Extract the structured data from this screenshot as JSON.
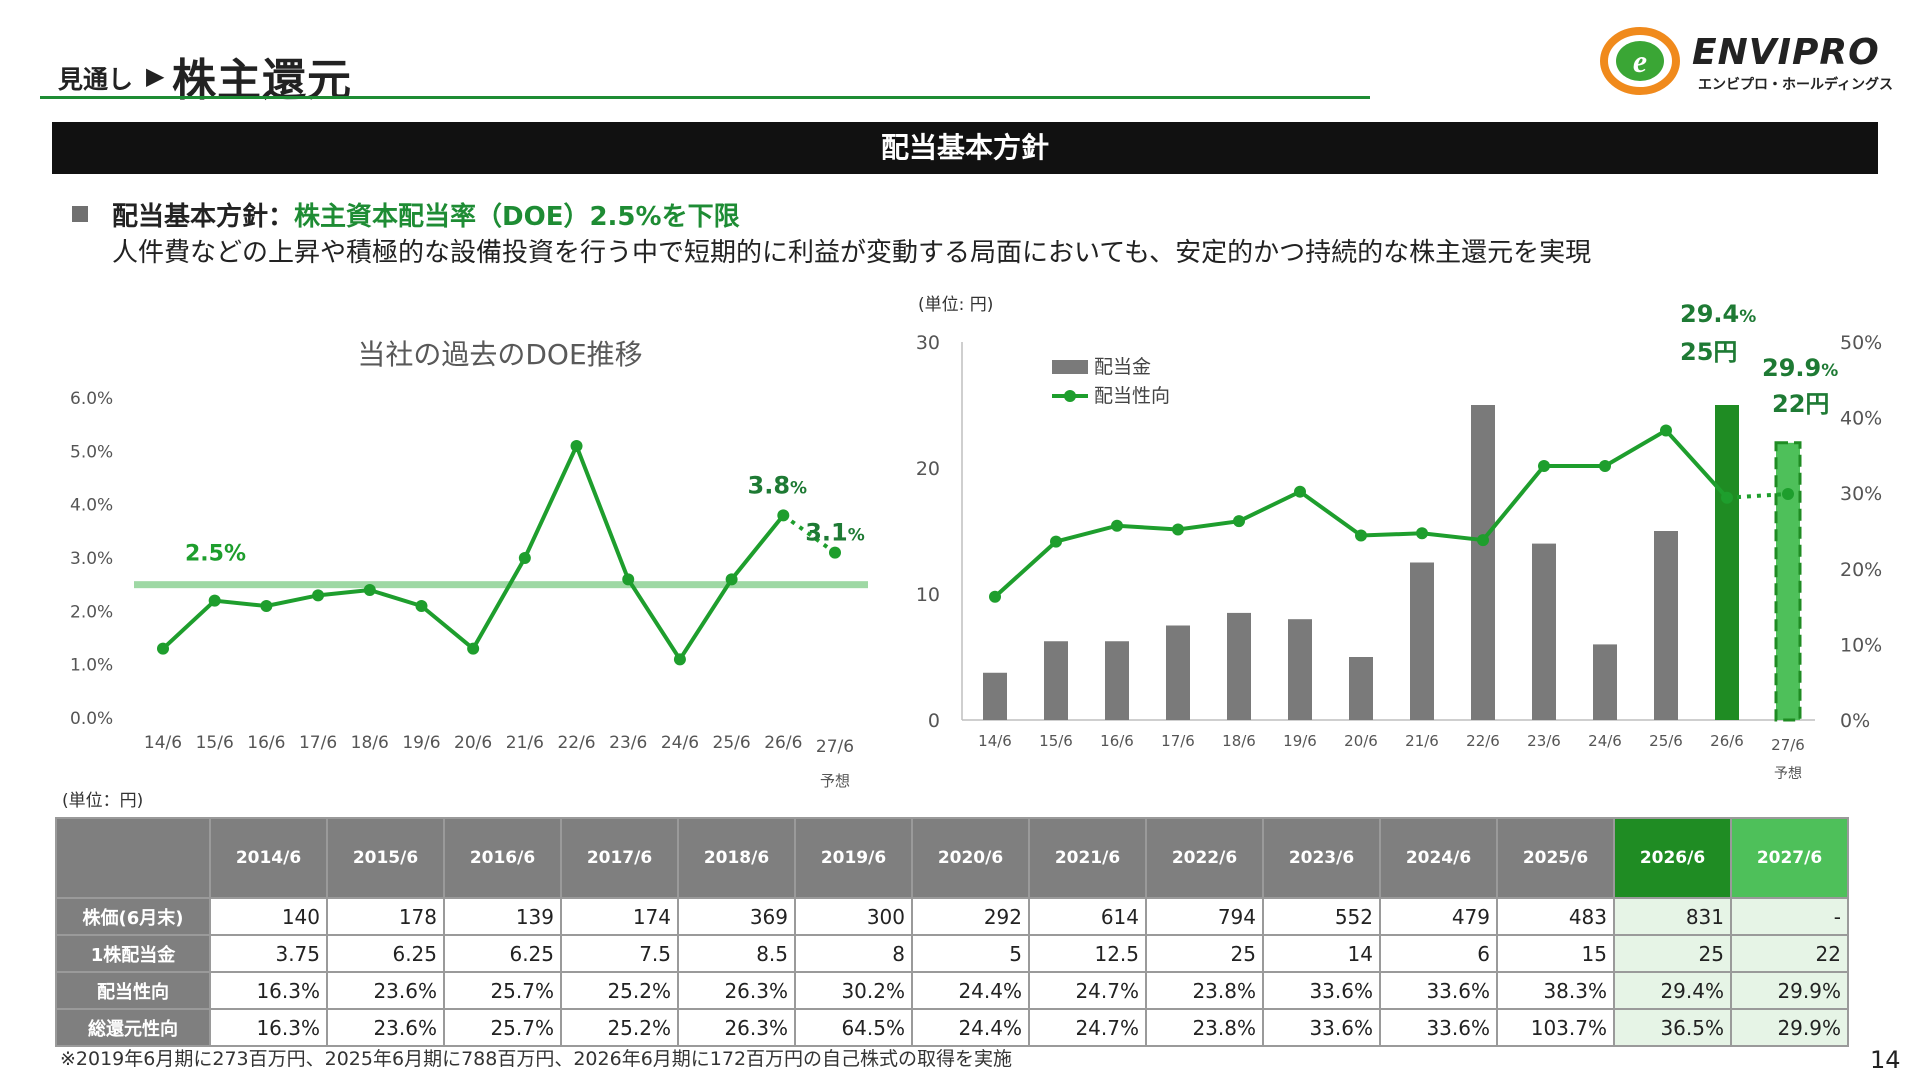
{
  "header": {
    "prefix": "見通し",
    "arrow": "▶",
    "title": "株主還元"
  },
  "logo": {
    "name": "ENVIPRO",
    "sub": "エンビプロ・ホールディングス",
    "colors": {
      "orange": "#f08a1c",
      "green": "#3aa635"
    }
  },
  "banner": {
    "title": "配当基本方針"
  },
  "policy": {
    "label": "配当基本方針：",
    "highlight": "株主資本配当率（DOE）2.5%を下限",
    "description": "人件費などの上昇や積極的な設備投資を行う中で短期的に利益が変動する局面においても、安定的かつ持続的な株主還元を実現"
  },
  "colors": {
    "green": "#1e9e2d",
    "dark_green": "#1f8c23",
    "light_green": "#4ec05a",
    "baseline": "#9ed8a4",
    "bar_gray": "#7a7a7a",
    "label_green": "#1e7a34"
  },
  "chart_data": [
    {
      "type": "line",
      "title": "当社の過去のDOE推移",
      "categories": [
        "14/6",
        "15/6",
        "16/6",
        "17/6",
        "18/6",
        "19/6",
        "20/6",
        "21/6",
        "22/6",
        "23/6",
        "24/6",
        "25/6",
        "26/6",
        "27/6"
      ],
      "forecast_label": "予想",
      "y_ticks": [
        "6.0%",
        "5.0%",
        "4.0%",
        "3.0%",
        "2.0%",
        "1.0%",
        "0.0%"
      ],
      "ylim": [
        0,
        6
      ],
      "series": [
        {
          "values": [
            1.3,
            2.2,
            2.1,
            2.3,
            2.4,
            2.1,
            1.3,
            3.0,
            5.1,
            2.6,
            1.1,
            2.6,
            3.8,
            3.1
          ]
        }
      ],
      "baseline": {
        "value": 2.5,
        "label": "2.5%"
      },
      "annotations": [
        {
          "index": 12,
          "big": "3.8",
          "small": "%"
        },
        {
          "index": 13,
          "big": "3.1",
          "small": "%"
        }
      ],
      "grid": false
    },
    {
      "type": "bar",
      "unit_label": "(単位: 円)",
      "categories": [
        "14/6",
        "15/6",
        "16/6",
        "17/6",
        "18/6",
        "19/6",
        "20/6",
        "21/6",
        "22/6",
        "23/6",
        "24/6",
        "25/6",
        "26/6",
        "27/6"
      ],
      "forecast_label": "予想",
      "series": [
        {
          "name": "配当金",
          "type": "bar",
          "values": [
            3.75,
            6.25,
            6.25,
            7.5,
            8.5,
            8,
            5,
            12.5,
            25,
            14,
            6,
            15,
            25,
            22
          ]
        },
        {
          "name": "配当性向",
          "type": "line",
          "axis": "right",
          "values": [
            16.3,
            23.6,
            25.7,
            25.2,
            26.3,
            30.2,
            24.4,
            24.7,
            23.8,
            33.6,
            33.6,
            38.3,
            29.4,
            29.9
          ]
        }
      ],
      "y_left_ticks": [
        "30",
        "20",
        "10",
        "0"
      ],
      "ylim_left": [
        0,
        30
      ],
      "y_right_ticks": [
        "50%",
        "40%",
        "30%",
        "20%",
        "10%",
        "0%"
      ],
      "ylim_right": [
        0,
        50
      ],
      "annotations": [
        {
          "pct_big": "29.4",
          "pct_small": "%",
          "yen": "25円"
        },
        {
          "pct_big": "29.9",
          "pct_small": "%",
          "yen": "22円"
        }
      ],
      "legend": "top-left",
      "grid": false
    }
  ],
  "table": {
    "unit": "(単位：円)",
    "columns": [
      "2014/6",
      "2015/6",
      "2016/6",
      "2017/6",
      "2018/6",
      "2019/6",
      "2020/6",
      "2021/6",
      "2022/6",
      "2023/6",
      "2024/6",
      "2025/6",
      "2026/6",
      "2027/6"
    ],
    "rows": [
      {
        "label": "株価(6月末)",
        "values": [
          "140",
          "178",
          "139",
          "174",
          "369",
          "300",
          "292",
          "614",
          "794",
          "552",
          "479",
          "483",
          "831",
          "-"
        ]
      },
      {
        "label": "1株配当金",
        "values": [
          "3.75",
          "6.25",
          "6.25",
          "7.5",
          "8.5",
          "8",
          "5",
          "12.5",
          "25",
          "14",
          "6",
          "15",
          "25",
          "22"
        ]
      },
      {
        "label": "配当性向",
        "values": [
          "16.3%",
          "23.6%",
          "25.7%",
          "25.2%",
          "26.3%",
          "30.2%",
          "24.4%",
          "24.7%",
          "23.8%",
          "33.6%",
          "33.6%",
          "38.3%",
          "29.4%",
          "29.9%"
        ]
      },
      {
        "label": "総還元性向",
        "values": [
          "16.3%",
          "23.6%",
          "25.7%",
          "25.2%",
          "26.3%",
          "64.5%",
          "24.4%",
          "24.7%",
          "23.8%",
          "33.6%",
          "33.6%",
          "103.7%",
          "36.5%",
          "29.9%"
        ]
      }
    ]
  },
  "footnote": "※2019年6月期に273百万円、2025年6月期に788百万円、2026年6月期に172百万円の自己株式の取得を実施",
  "page_number": "14"
}
